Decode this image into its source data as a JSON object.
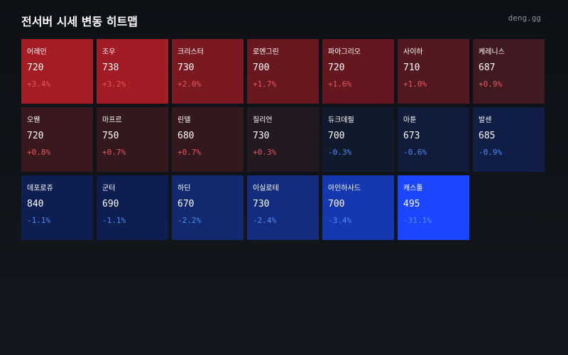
{
  "header": {
    "title": "전서버 시세 변동 히트맵",
    "brand": "deng.gg"
  },
  "tiles": [
    {
      "name": "어레인",
      "price": 720,
      "change": "+3.4%",
      "color": "#a51c24"
    },
    {
      "name": "조우",
      "price": 738,
      "change": "+3.2%",
      "color": "#a11c24"
    },
    {
      "name": "크리스터",
      "price": 730,
      "change": "+2.0%",
      "color": "#7a1a20"
    },
    {
      "name": "로엔그린",
      "price": 700,
      "change": "+1.7%",
      "color": "#6a1820"
    },
    {
      "name": "파아그리오",
      "price": 720,
      "change": "+1.6%",
      "color": "#64171f"
    },
    {
      "name": "사이하",
      "price": 710,
      "change": "+1.0%",
      "color": "#521a20"
    },
    {
      "name": "케레니스",
      "price": 687,
      "change": "+0.9%",
      "color": "#401a20"
    },
    {
      "name": "오웬",
      "price": 720,
      "change": "+0.8%",
      "color": "#3a191e"
    },
    {
      "name": "마프르",
      "price": 750,
      "change": "+0.7%",
      "color": "#33191e"
    },
    {
      "name": "린델",
      "price": 680,
      "change": "+0.7%",
      "color": "#33191e"
    },
    {
      "name": "질리언",
      "price": 730,
      "change": "+0.3%",
      "color": "#221a20"
    },
    {
      "name": "듀크데필",
      "price": 700,
      "change": "-0.3%",
      "color": "#111a2d"
    },
    {
      "name": "아툰",
      "price": 673,
      "change": "-0.6%",
      "color": "#101c3a"
    },
    {
      "name": "발센",
      "price": 685,
      "change": "-0.9%",
      "color": "#0f1d47"
    },
    {
      "name": "데포로쥬",
      "price": 840,
      "change": "-1.1%",
      "color": "#0f1e50"
    },
    {
      "name": "군터",
      "price": 690,
      "change": "-1.1%",
      "color": "#0f1e50"
    },
    {
      "name": "하딘",
      "price": 670,
      "change": "-2.2%",
      "color": "#12296f"
    },
    {
      "name": "이실로테",
      "price": 730,
      "change": "-2.4%",
      "color": "#132c7e"
    },
    {
      "name": "아인하사드",
      "price": 700,
      "change": "-3.4%",
      "color": "#1537b0"
    },
    {
      "name": "캐스톨",
      "price": 495,
      "change": "-31.1%",
      "color": "#1b45ff"
    }
  ]
}
